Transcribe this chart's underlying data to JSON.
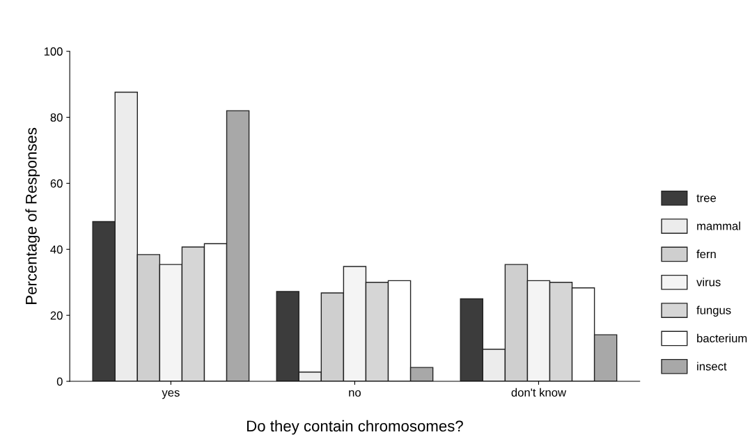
{
  "chart_data": {
    "type": "bar",
    "xlabel": "Do they contain chromosomes?",
    "ylabel": "Percentage of Responses",
    "categories": [
      "yes",
      "no",
      "don't know"
    ],
    "series": [
      {
        "name": "tree",
        "color": "#3c3c3c",
        "values": [
          48.4,
          27.2,
          25.0
        ]
      },
      {
        "name": "mammal",
        "color": "#ececec",
        "values": [
          87.6,
          2.8,
          9.7
        ]
      },
      {
        "name": "fern",
        "color": "#cfcfcf",
        "values": [
          38.4,
          26.8,
          35.4
        ]
      },
      {
        "name": "virus",
        "color": "#f4f4f4",
        "values": [
          35.4,
          34.8,
          30.5
        ]
      },
      {
        "name": "fungus",
        "color": "#d6d6d6",
        "values": [
          40.7,
          30.0,
          30.0
        ]
      },
      {
        "name": "bacterium",
        "color": "#ffffff",
        "values": [
          41.7,
          30.5,
          28.3
        ]
      },
      {
        "name": "insect",
        "color": "#a8a8a8",
        "values": [
          82.0,
          4.2,
          14.1
        ]
      }
    ],
    "ylim": [
      0,
      100
    ],
    "yticks": [
      0,
      20,
      40,
      60,
      80,
      100
    ],
    "grid": false,
    "legend": "right"
  }
}
